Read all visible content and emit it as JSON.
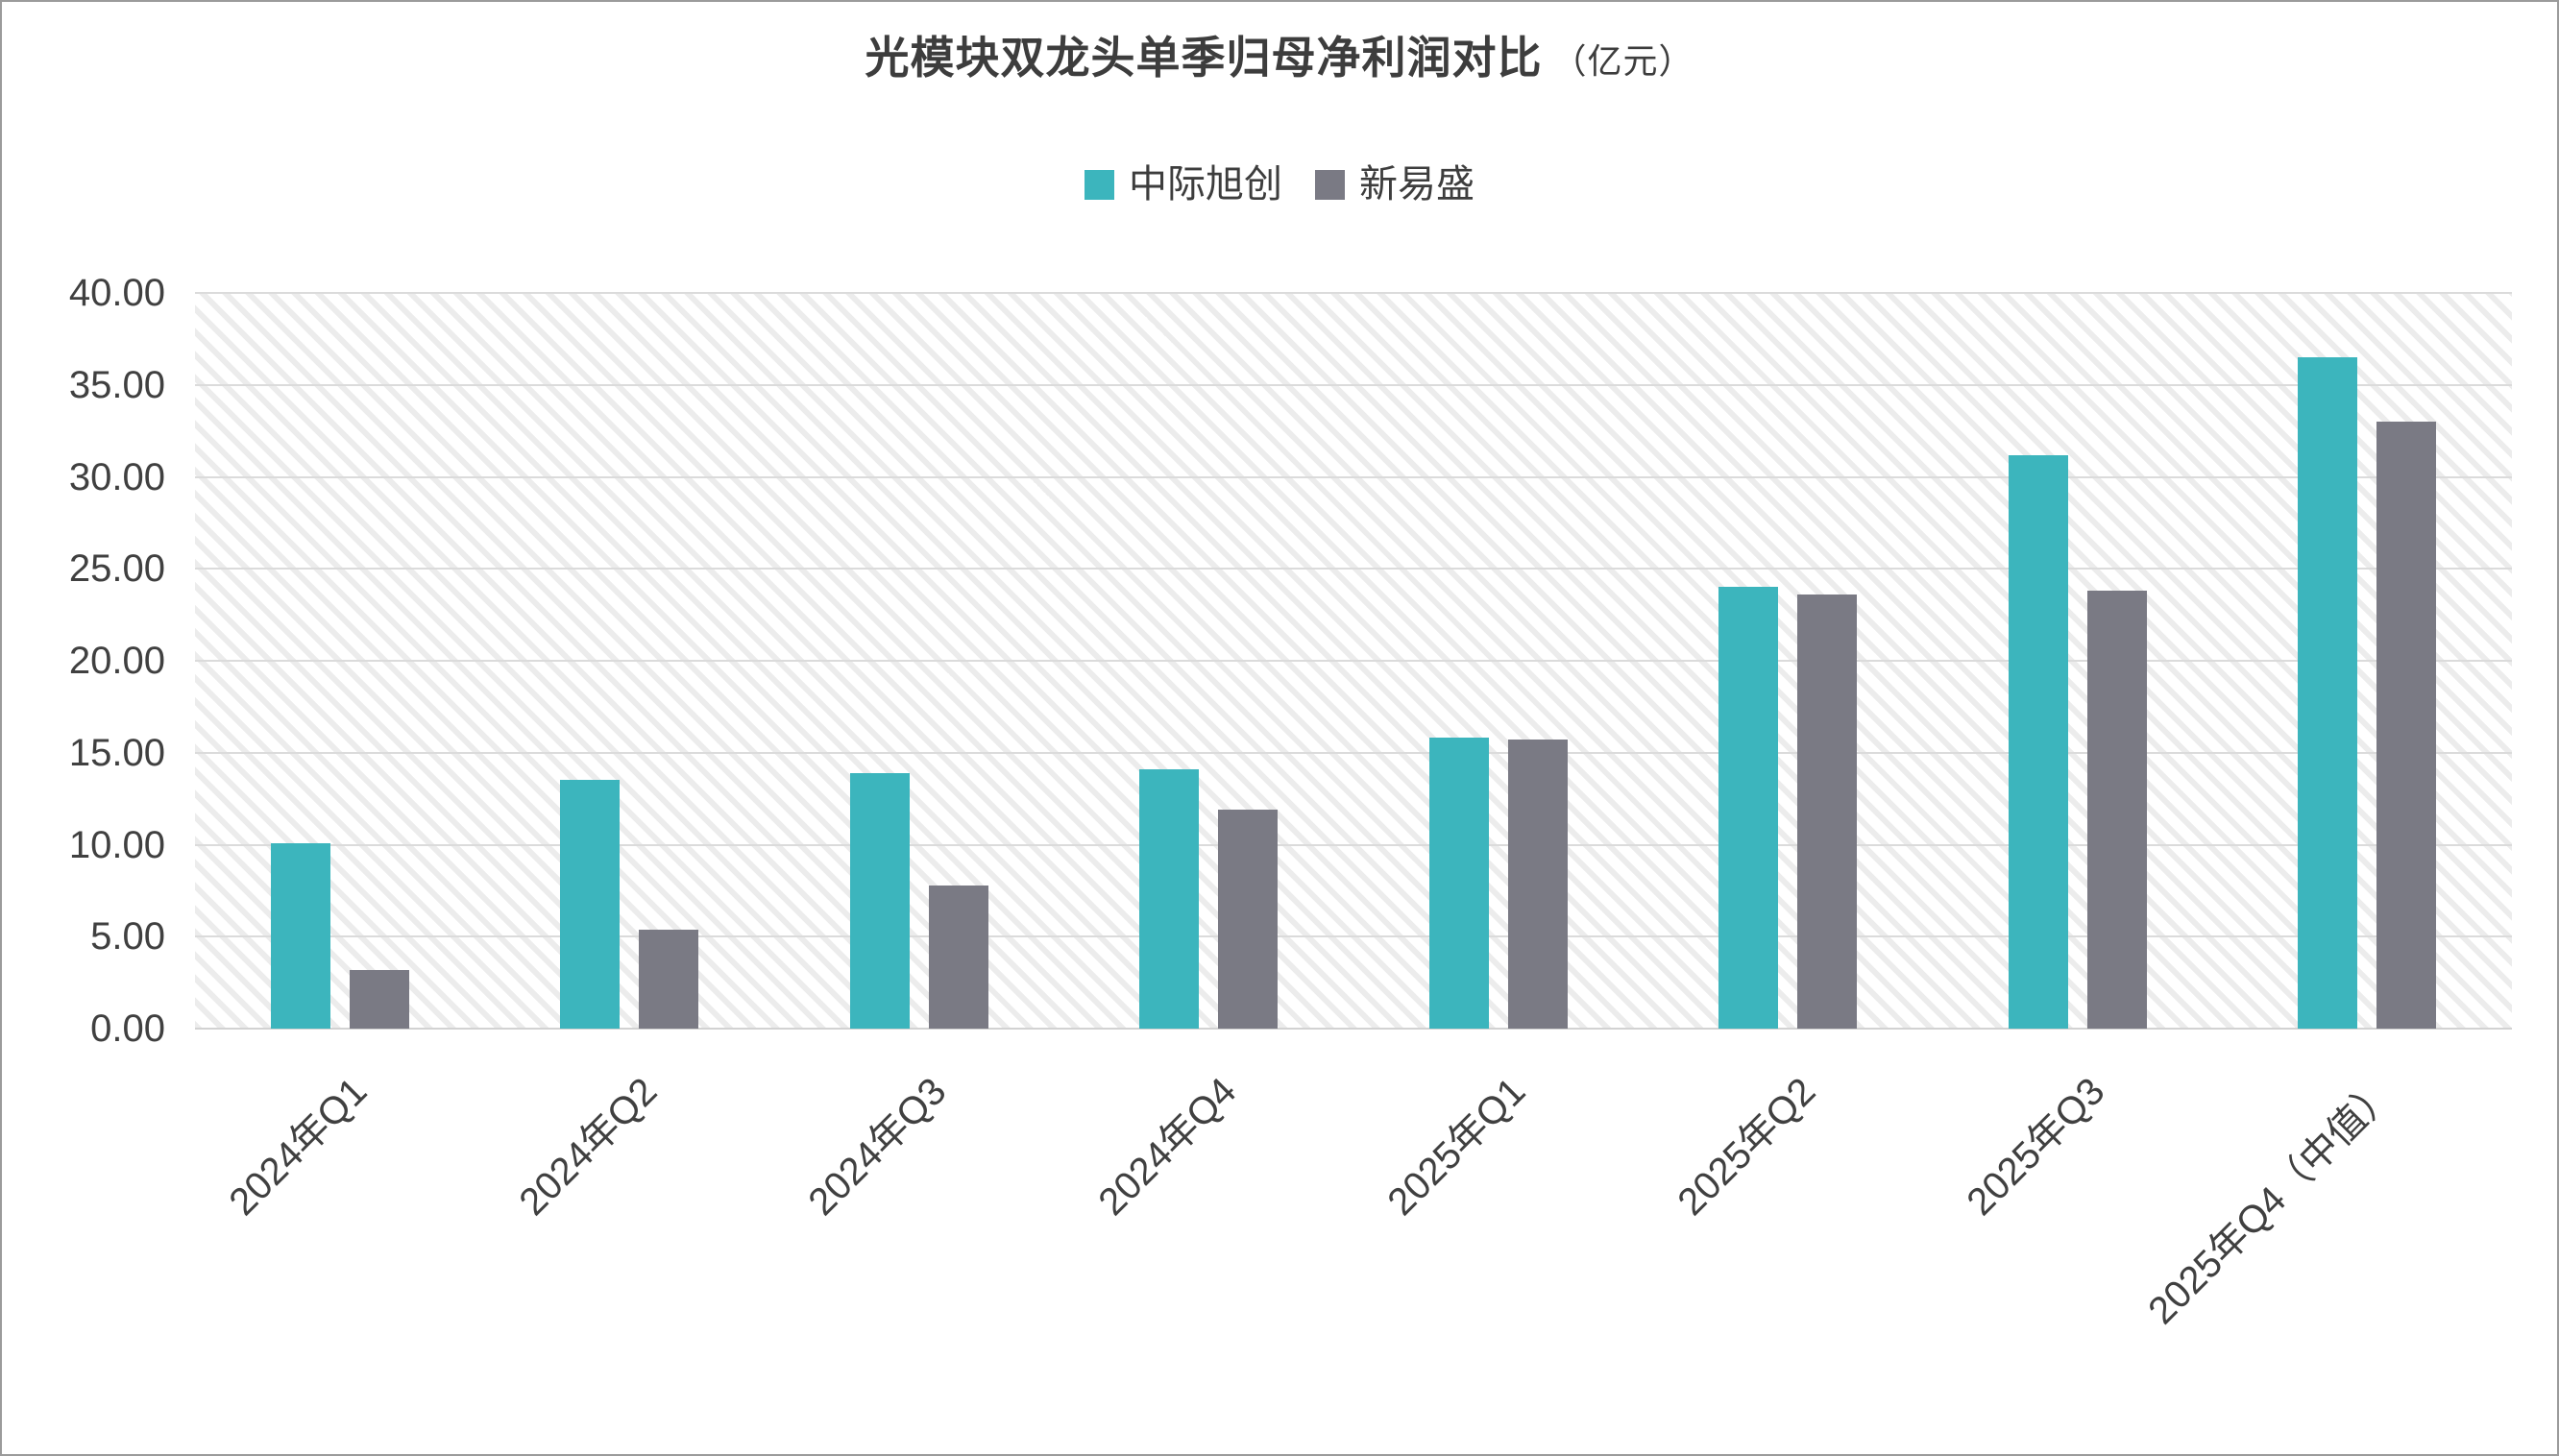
{
  "window": {
    "background": "#FFFFFF",
    "border_color": "#9B9B9B"
  },
  "title": {
    "text": "光模块双龙头单季归母净利润对比",
    "unit_suffix": "（亿元）",
    "color": "#3D3D3D"
  },
  "chart_data": {
    "type": "bar",
    "title": "光模块双龙头单季归母净利润对比（亿元）",
    "categories": [
      "2024年Q1",
      "2024年Q2",
      "2024年Q3",
      "2024年Q4",
      "2025年Q1",
      "2025年Q2",
      "2025年Q3",
      "2025年Q4（中值）"
    ],
    "series": [
      {
        "name": "中际旭创",
        "color": "#3CB5BD",
        "values": [
          10.1,
          13.5,
          13.9,
          14.1,
          15.8,
          24.0,
          31.2,
          36.5
        ]
      },
      {
        "name": "新易盛",
        "color": "#7A7A84",
        "values": [
          3.2,
          5.4,
          7.8,
          11.9,
          15.7,
          23.6,
          23.8,
          33.0
        ]
      }
    ],
    "xlabel": "",
    "ylabel": "",
    "ylim": [
      0,
      40
    ],
    "ytick_step": 5,
    "ytick_labels": [
      "0.00",
      "5.00",
      "10.00",
      "15.00",
      "20.00",
      "25.00",
      "30.00",
      "35.00",
      "40.00"
    ],
    "grid": "horizontal",
    "gridline_color": "#DBDBDB",
    "axis_text_color": "#404040",
    "legend_position": "top",
    "plot_background": "white-with-light-diagonal-hatch",
    "hatch_color": "#ECECEC",
    "x_label_rotation_deg": -45
  }
}
